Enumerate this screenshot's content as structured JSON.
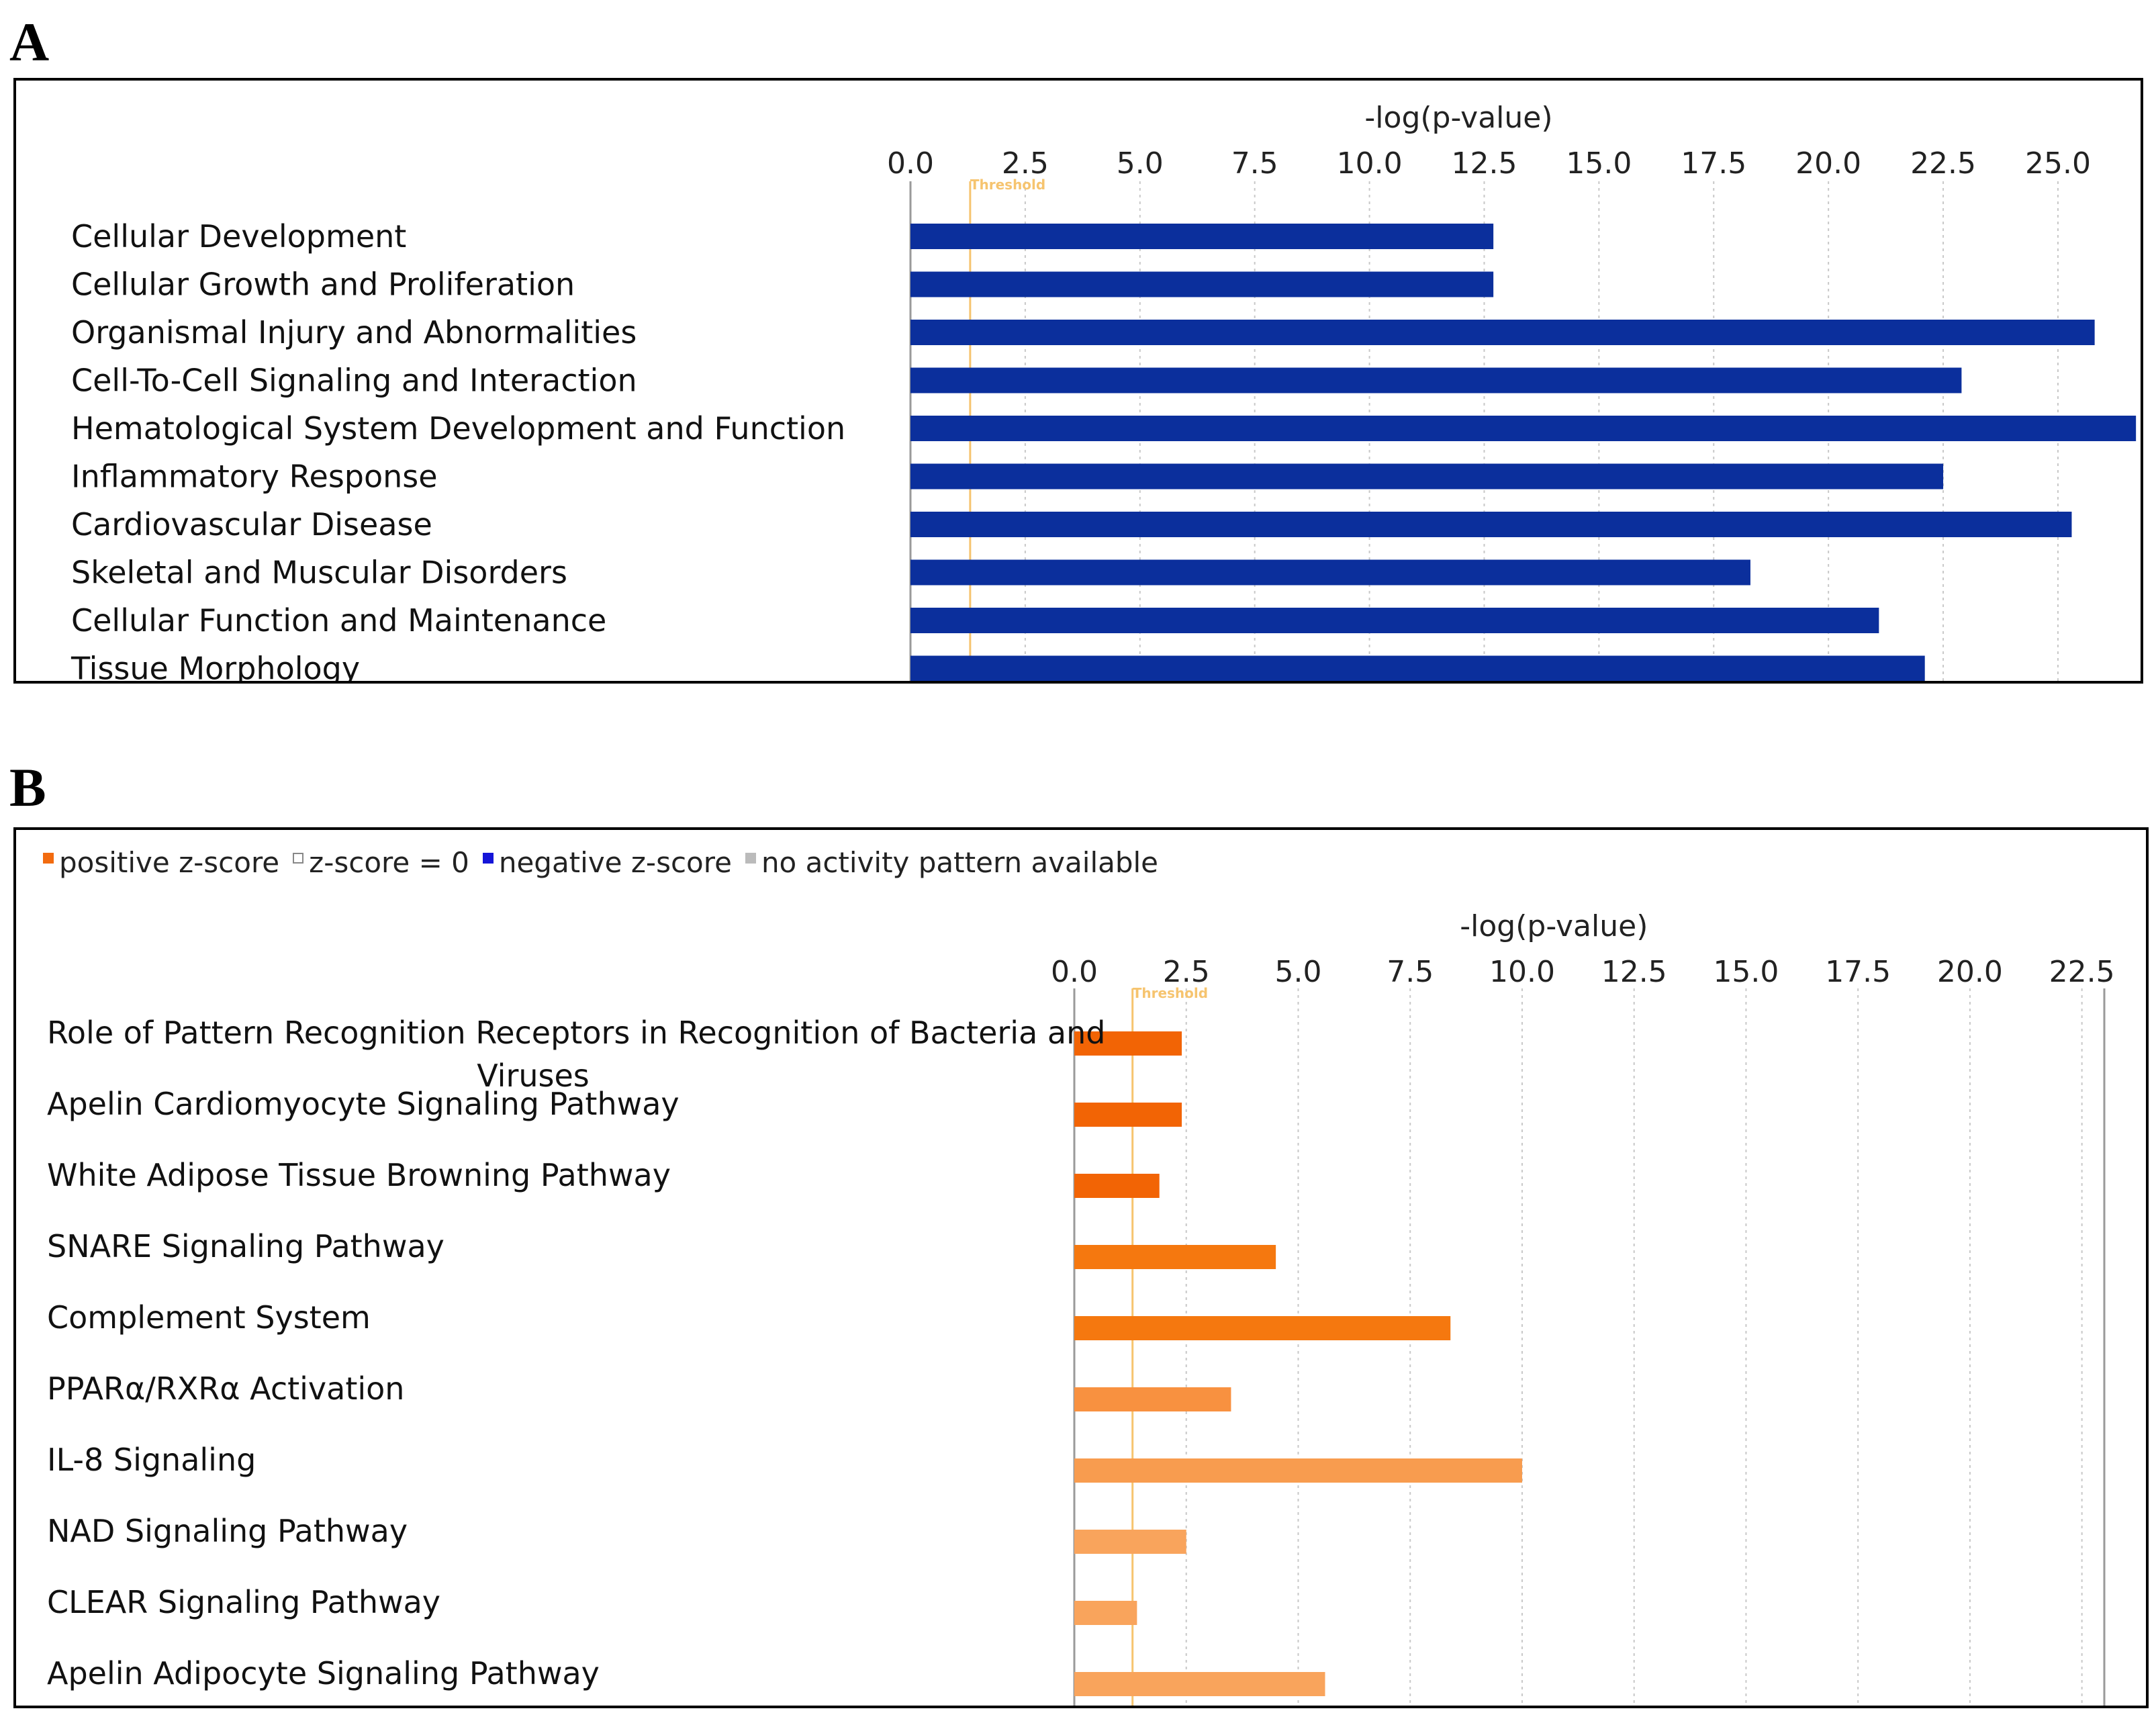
{
  "panels": {
    "a": {
      "letter": "A"
    },
    "b": {
      "letter": "B"
    }
  },
  "chart_data": [
    {
      "type": "bar",
      "orientation": "horizontal",
      "title": "",
      "xlabel": "-log(p-value)",
      "xlim": [
        0,
        26.8
      ],
      "ticks": [
        "0.0",
        "2.5",
        "5.0",
        "7.5",
        "10.0",
        "12.5",
        "15.0",
        "17.5",
        "20.0",
        "22.5",
        "25.0"
      ],
      "tick_values": [
        0,
        2.5,
        5,
        7.5,
        10,
        12.5,
        15,
        17.5,
        20,
        22.5,
        25
      ],
      "threshold": {
        "label": "Threshold",
        "value": 1.3
      },
      "grid": "vertical dotted",
      "bar_color": "#0b2f9c",
      "categories": [
        "Cellular Development",
        "Cellular Growth and Proliferation",
        "Organismal Injury and Abnormalities",
        "Cell-To-Cell Signaling and Interaction",
        "Hematological System Development and Function",
        "Inflammatory Response",
        "Cardiovascular Disease",
        "Skeletal and Muscular Disorders",
        "Cellular Function and Maintenance",
        "Tissue Morphology"
      ],
      "values": [
        12.7,
        12.7,
        25.8,
        22.9,
        26.7,
        22.5,
        25.3,
        18.3,
        21.1,
        22.1
      ]
    },
    {
      "type": "bar",
      "orientation": "horizontal",
      "title": "",
      "xlabel": "-log(p-value)",
      "xlim": [
        0,
        23
      ],
      "ticks": [
        "0.0",
        "2.5",
        "5.0",
        "7.5",
        "10.0",
        "12.5",
        "15.0",
        "17.5",
        "20.0",
        "22.5"
      ],
      "tick_values": [
        0,
        2.5,
        5,
        7.5,
        10,
        12.5,
        15,
        17.5,
        20,
        22.5
      ],
      "threshold": {
        "label": "Threshold",
        "value": 1.3
      },
      "grid": "vertical dotted",
      "legend": [
        {
          "label": "positive z-score",
          "color": "#f26b0f"
        },
        {
          "label": "z-score = 0",
          "color": "#ffffff"
        },
        {
          "label": "negative z-score",
          "color": "#1515d8"
        },
        {
          "label": "no activity pattern available",
          "color": "#bbbbbb"
        }
      ],
      "categories": [
        [
          "Role of Pattern Recognition Receptors in Recognition of Bacteria and",
          "Viruses"
        ],
        [
          "Apelin Cardiomyocyte Signaling Pathway"
        ],
        [
          "White Adipose Tissue Browning Pathway"
        ],
        [
          "SNARE Signaling Pathway"
        ],
        [
          "Complement System"
        ],
        [
          "PPARα/RXRα Activation"
        ],
        [
          "IL-8 Signaling"
        ],
        [
          "NAD Signaling Pathway"
        ],
        [
          "CLEAR Signaling Pathway"
        ],
        [
          "Apelin Adipocyte Signaling Pathway"
        ]
      ],
      "values": [
        2.4,
        2.4,
        1.9,
        4.5,
        8.4,
        3.5,
        10.0,
        2.5,
        1.4,
        5.6
      ],
      "bar_colors": [
        "#f26405",
        "#f26405",
        "#f26405",
        "#f5780f",
        "#f5780f",
        "#f89140",
        "#f89c4f",
        "#f9a45c",
        "#f9a45c",
        "#f9a45c"
      ]
    }
  ]
}
